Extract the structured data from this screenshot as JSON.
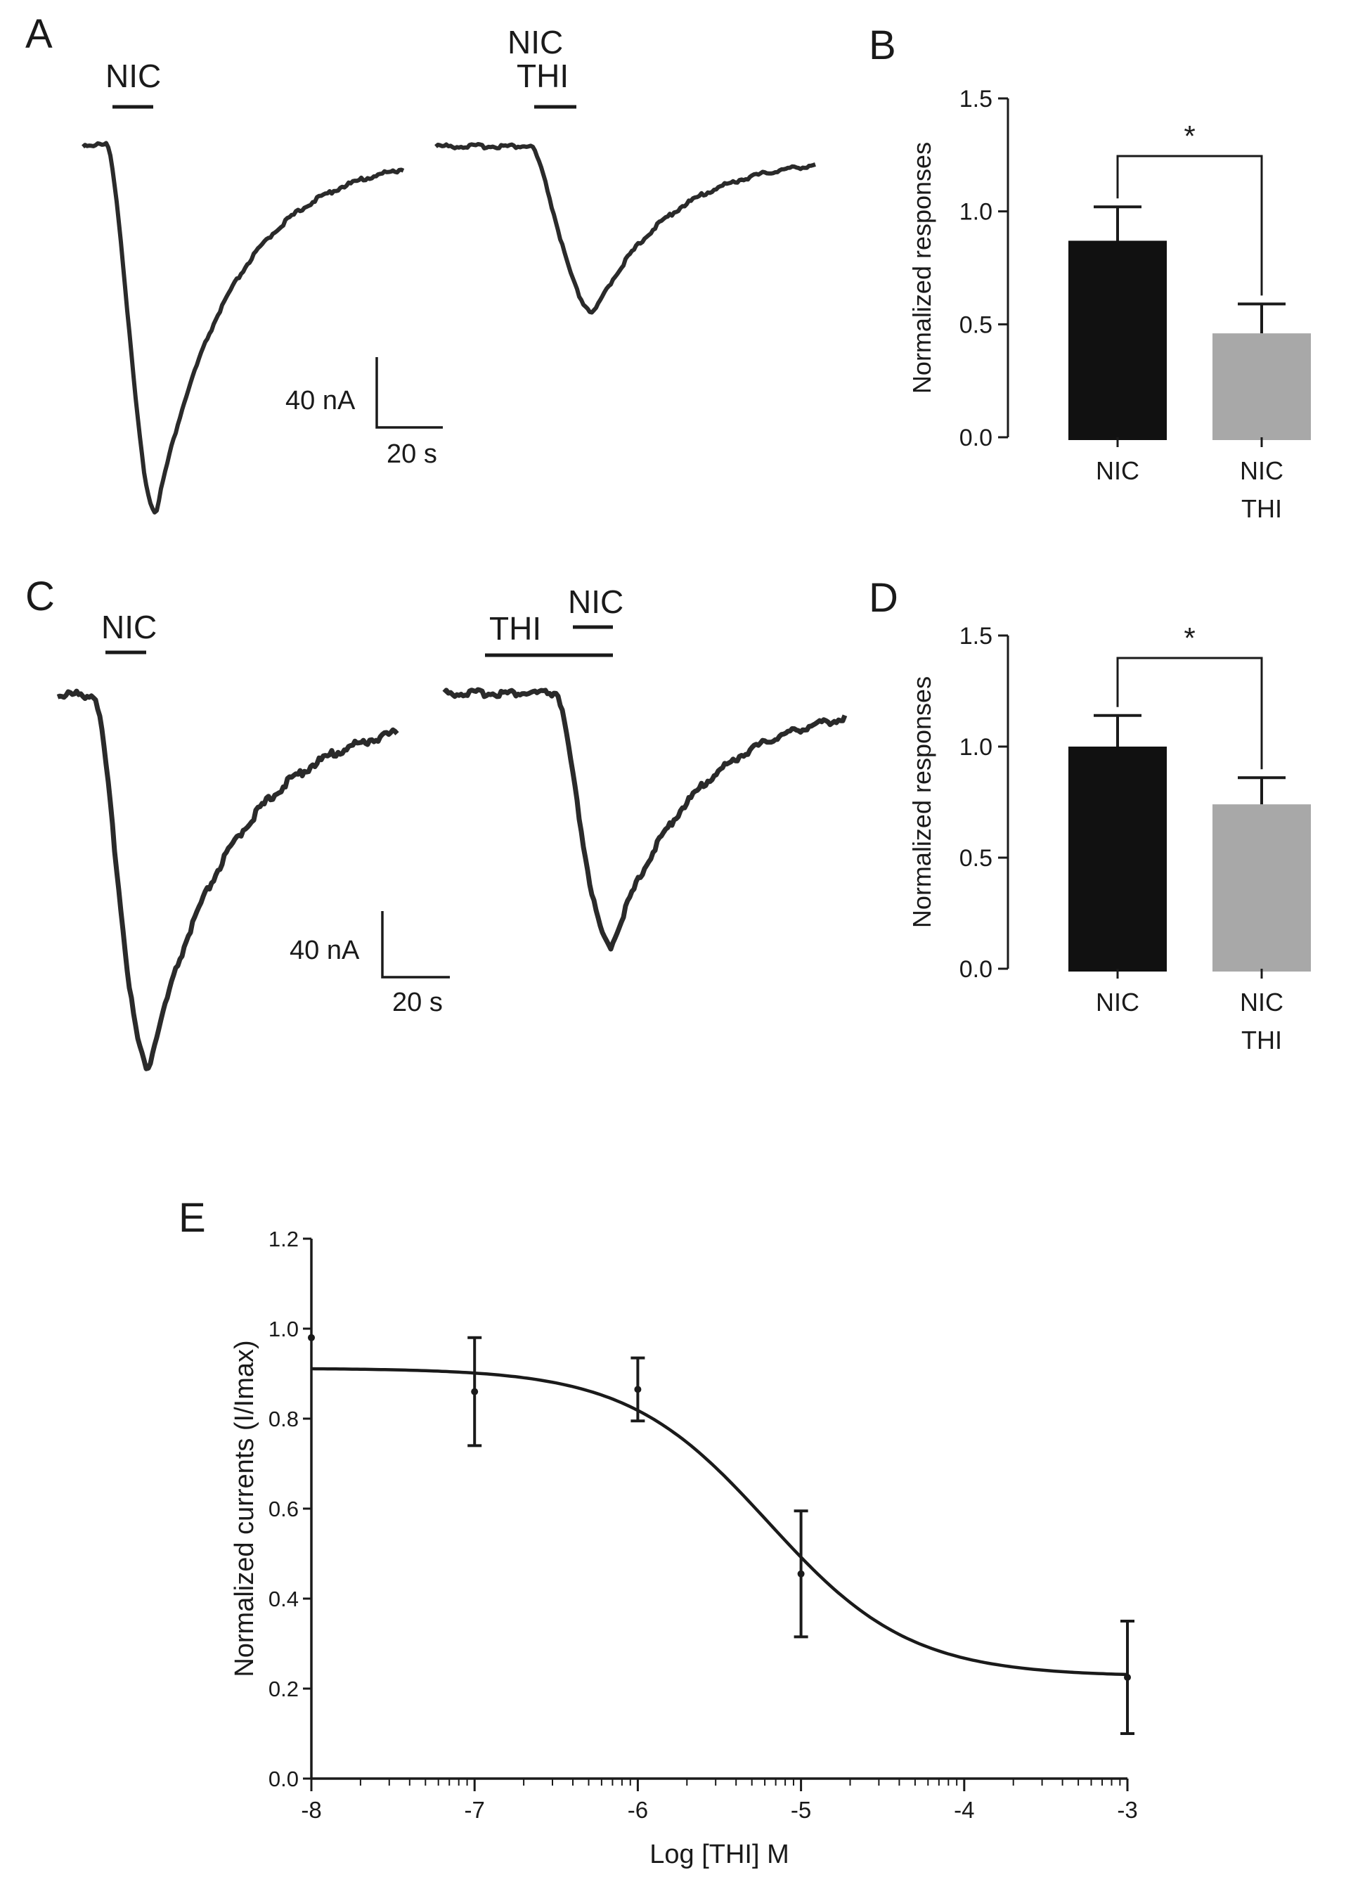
{
  "figure": {
    "panel_a": {
      "letter": "A",
      "left_drug": "NIC",
      "right_drug_top": "NIC",
      "right_drug_bottom": "THI",
      "scale_current": "40 nA",
      "scale_time": "20 s"
    },
    "panel_c": {
      "letter": "C",
      "left_drug": "NIC",
      "right_pre_drug": "THI",
      "right_drug": "NIC",
      "scale_current": "40 nA",
      "scale_time": "20 s"
    }
  },
  "chart_data": [
    {
      "panel": "B",
      "type": "bar",
      "title": "",
      "xlabel": "",
      "ylabel": "Normalized responses",
      "categories": [
        [
          "NIC"
        ],
        [
          "NIC",
          "THI"
        ]
      ],
      "values": [
        0.87,
        0.46
      ],
      "errors": [
        0.15,
        0.13
      ],
      "ylim": [
        0.0,
        1.5
      ],
      "yticks": [
        "0.0",
        "0.5",
        "1.0",
        "1.5"
      ],
      "colors": [
        "#111111",
        "#a8a8a8"
      ],
      "significance": "*"
    },
    {
      "panel": "D",
      "type": "bar",
      "title": "",
      "xlabel": "",
      "ylabel": "Normalized responses",
      "categories": [
        [
          "NIC"
        ],
        [
          "NIC",
          "THI"
        ]
      ],
      "values": [
        1.0,
        0.74
      ],
      "errors": [
        0.14,
        0.12
      ],
      "ylim": [
        0.0,
        1.5
      ],
      "yticks": [
        "0.0",
        "0.5",
        "1.0",
        "1.5"
      ],
      "colors": [
        "#111111",
        "#a8a8a8"
      ],
      "significance": "*"
    },
    {
      "panel": "E",
      "type": "line",
      "title": "",
      "xlabel": "Log [THI] M",
      "ylabel": "Normalized currents (I/Imax)",
      "xlim": [
        -8,
        -3
      ],
      "ylim": [
        0.0,
        1.2
      ],
      "xticks": [
        "-8",
        "-7",
        "-6",
        "-5",
        "-4",
        "-3"
      ],
      "yticks": [
        "0.0",
        "0.2",
        "0.4",
        "0.6",
        "0.8",
        "1.0",
        "1.2"
      ],
      "points": {
        "x": [
          -8,
          -7,
          -6,
          -5,
          -3
        ],
        "y": [
          0.98,
          0.86,
          0.865,
          0.455,
          0.225
        ],
        "err": [
          0.0,
          0.12,
          0.07,
          0.14,
          0.125
        ]
      },
      "fit": {
        "top": 0.912,
        "bottom": 0.227,
        "logIC50": -5.2,
        "hill": 1.0
      }
    }
  ]
}
